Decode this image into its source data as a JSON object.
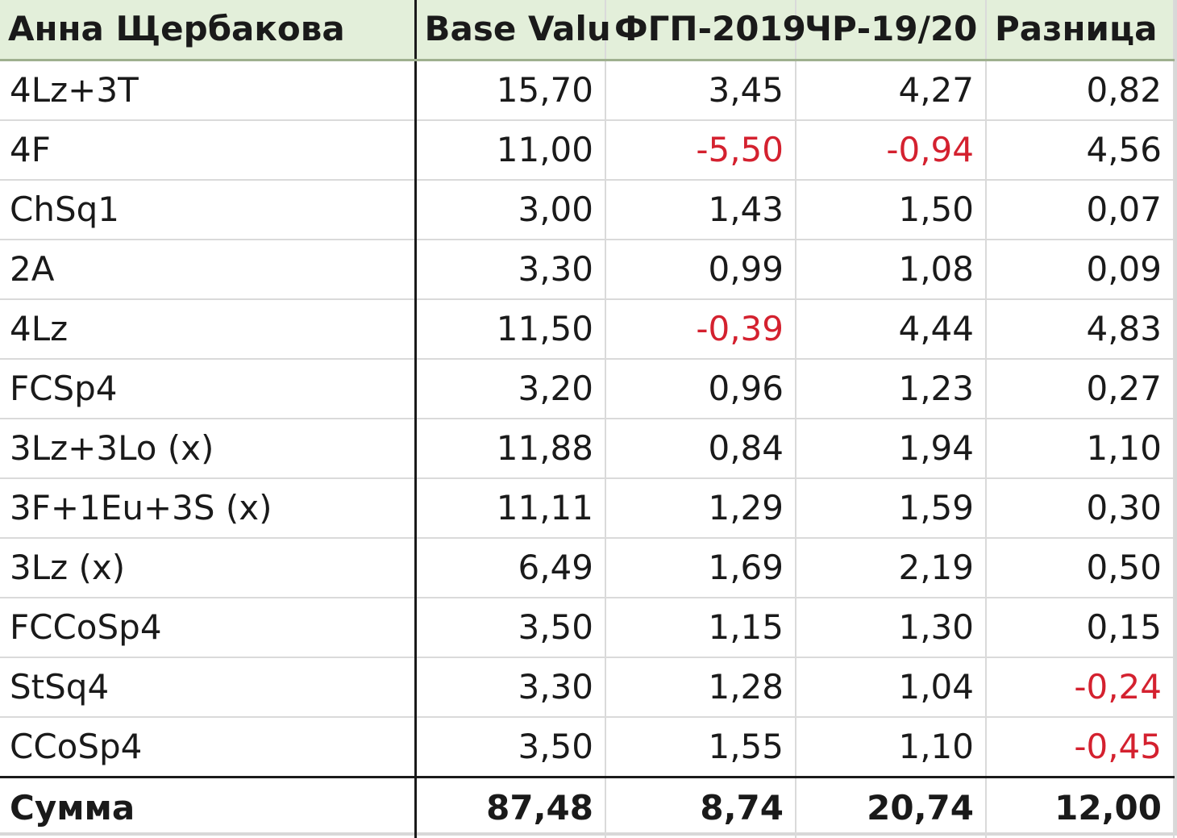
{
  "table": {
    "headers": [
      "Анна Щербакова",
      "Base Valu",
      "ФГП-2019",
      "ЧР-19/20",
      "Разница"
    ],
    "rows": [
      [
        "4Lz+3T",
        "15,70",
        "3,45",
        "4,27",
        "0,82"
      ],
      [
        "4F",
        "11,00",
        "-5,50",
        "-0,94",
        "4,56"
      ],
      [
        "ChSq1",
        "3,00",
        "1,43",
        "1,50",
        "0,07"
      ],
      [
        "2A",
        "3,30",
        "0,99",
        "1,08",
        "0,09"
      ],
      [
        "4Lz",
        "11,50",
        "-0,39",
        "4,44",
        "4,83"
      ],
      [
        "FCSp4",
        "3,20",
        "0,96",
        "1,23",
        "0,27"
      ],
      [
        "3Lz+3Lo (x)",
        "11,88",
        "0,84",
        "1,94",
        "1,10"
      ],
      [
        "3F+1Eu+3S (x)",
        "11,11",
        "1,29",
        "1,59",
        "0,30"
      ],
      [
        "3Lz (x)",
        "6,49",
        "1,69",
        "2,19",
        "0,50"
      ],
      [
        "FCCoSp4",
        "3,50",
        "1,15",
        "1,30",
        "0,15"
      ],
      [
        "StSq4",
        "3,30",
        "1,28",
        "1,04",
        "-0,24"
      ],
      [
        "CCoSp4",
        "3,50",
        "1,55",
        "1,10",
        "-0,45"
      ]
    ],
    "total": [
      "Сумма",
      "87,48",
      "8,74",
      "20,74",
      "12,00"
    ]
  },
  "colors": {
    "header_bg": "#e3efda",
    "negative": "#d4212f",
    "text": "#1a1a1a",
    "gridline": "#dadada"
  }
}
